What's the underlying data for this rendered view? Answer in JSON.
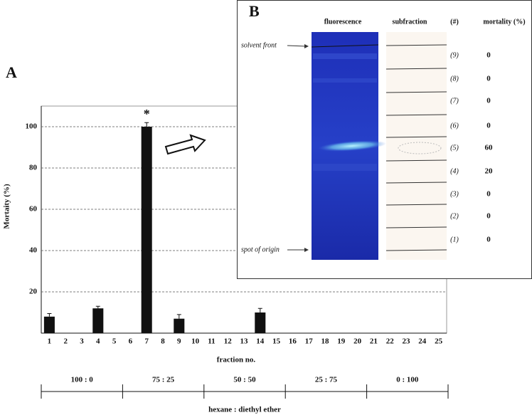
{
  "chart_data": {
    "type": "bar",
    "panel_label": "A",
    "categories": [
      "1",
      "2",
      "3",
      "4",
      "5",
      "6",
      "7",
      "8",
      "9",
      "10",
      "11",
      "12",
      "13",
      "14",
      "15",
      "16",
      "17",
      "18",
      "19",
      "20",
      "21",
      "22",
      "23",
      "24",
      "25"
    ],
    "values": [
      8,
      0,
      0,
      12,
      0,
      0,
      100,
      0,
      7,
      0,
      0,
      0,
      0,
      10,
      0,
      0,
      0,
      0,
      0,
      0,
      0,
      0,
      0,
      0,
      0
    ],
    "errors": [
      1.5,
      null,
      null,
      1,
      null,
      null,
      2,
      null,
      2,
      null,
      null,
      null,
      null,
      2,
      null,
      null,
      null,
      null,
      null,
      null,
      null,
      null,
      null,
      null,
      null
    ],
    "color": "#111111",
    "ylim": [
      0,
      110
    ],
    "yticks": [
      20,
      40,
      60,
      80,
      100
    ],
    "grid": true,
    "xlabel": "fraction no.",
    "ylabel": "Mortaity (%)",
    "annotation": "*",
    "solvent_label": "hexane : diethyl ether",
    "solvent_ratios": [
      "100 : 0",
      "75 : 25",
      "50 : 50",
      "25 : 75",
      "0 : 100"
    ]
  },
  "panel_b": {
    "label": "B",
    "headers": [
      "fluorescence",
      "subfraction",
      "(#)",
      "mortality  (%)"
    ],
    "solvent_front": "solvent front",
    "spot_of_origin": "spot of origin",
    "rows": [
      {
        "label": "(9)",
        "mortality": "0"
      },
      {
        "label": "(8)",
        "mortality": "0"
      },
      {
        "label": "(7)",
        "mortality": "0"
      },
      {
        "label": "(6)",
        "mortality": "0"
      },
      {
        "label": "(5)",
        "mortality": "60"
      },
      {
        "label": "(4)",
        "mortality": "20"
      },
      {
        "label": "(3)",
        "mortality": "0"
      },
      {
        "label": "(2)",
        "mortality": "0"
      },
      {
        "label": "(1)",
        "mortality": "0"
      }
    ]
  }
}
